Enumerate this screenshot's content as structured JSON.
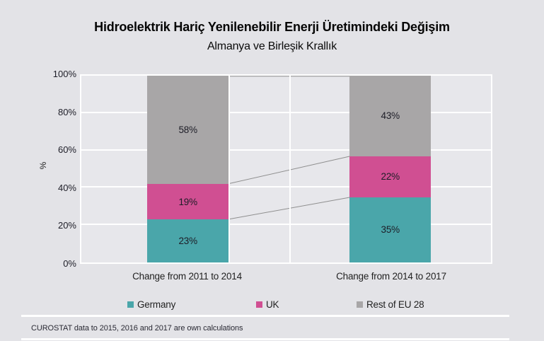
{
  "header": {
    "title": "Hidroelektrik Hariç Yenilenebilir Enerji Üretimindeki Değişim",
    "subtitle": "Almanya ve Birleşik Krallık"
  },
  "footer": {
    "note": "CUROSTAT data to 2015, 2016 and 2017 are own calculations"
  },
  "colors": {
    "page_bg": "#e3e3e7",
    "plot_bg": "#e7e7eb",
    "grid": "#ffffff",
    "connector": "#8f8f8f",
    "germany": "#4aa6aa",
    "uk": "#d04f92",
    "rest_of_eu": "#a8a6a7",
    "text": "#1d1d27"
  },
  "chart_data": {
    "type": "bar",
    "stacked": true,
    "title": "Hidroelektrik Hariç Yenilenebilir Enerji Üretimindeki Değişim",
    "subtitle": "Almanya ve Birleşik Krallık",
    "categories": [
      "Change from 2011 to 2014",
      "Change from 2014 to 2017"
    ],
    "series": [
      {
        "name": "Germany",
        "color": "#4aa6aa",
        "values": [
          23,
          35
        ]
      },
      {
        "name": "UK",
        "color": "#d04f92",
        "values": [
          19,
          22
        ]
      },
      {
        "name": "Rest of EU 28",
        "color": "#a8a6a7",
        "values": [
          58,
          43
        ]
      }
    ],
    "value_label_suffix": "%",
    "xlabel": "",
    "ylabel": "%",
    "ylim": [
      0,
      100
    ],
    "yticks": [
      0,
      20,
      40,
      60,
      80,
      100
    ],
    "ytick_suffix": "%",
    "grid": true,
    "legend_position": "bottom",
    "connectors_between_stacks": true
  }
}
